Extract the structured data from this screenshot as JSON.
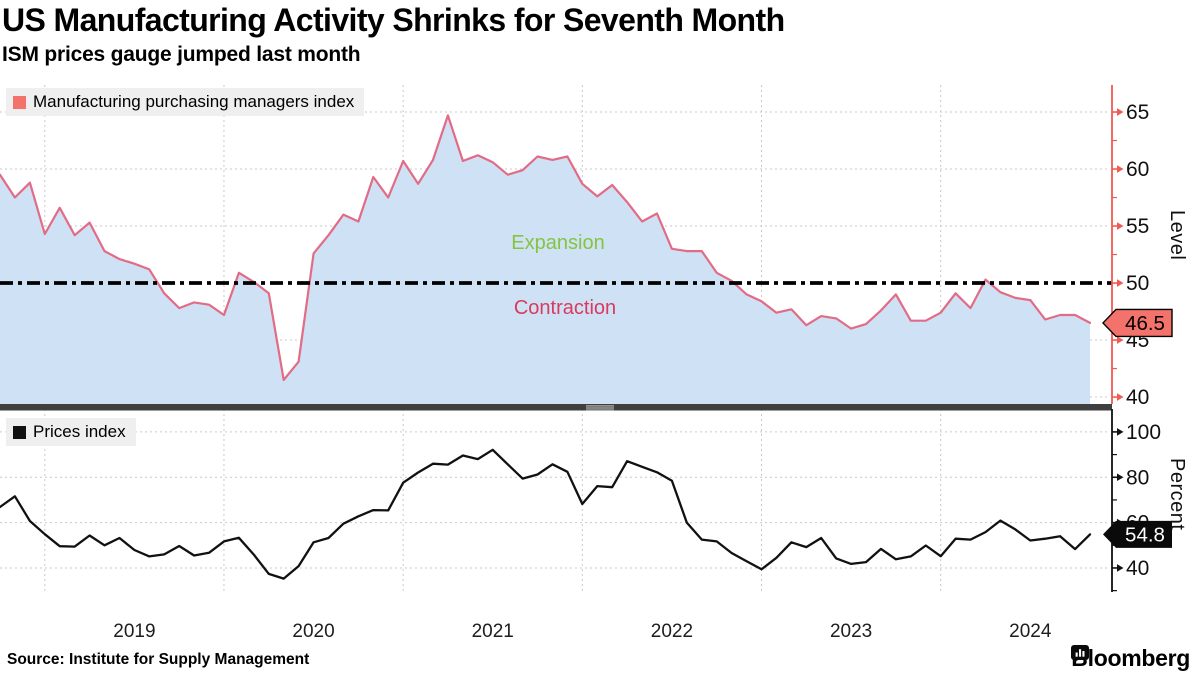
{
  "header": {
    "title": "US Manufacturing Activity Shrinks for Seventh Month",
    "subtitle": "ISM prices gauge jumped last month"
  },
  "footer": {
    "source": "Source: Institute for Supply Management",
    "brand": "Bloomberg"
  },
  "colors": {
    "pmi_line": "#e26b85",
    "pmi_fill": "#cfe2f5",
    "pmi_axis": "#f05a50",
    "pmi_badge_bg": "#f3736c",
    "prices_color": "#111111",
    "expansion_green": "#85c440",
    "contraction_red": "#d93a5e",
    "grid": "#c9c9c9",
    "legend_bg": "#efefef",
    "divider": "#3f3f3f",
    "divider_grip": "#a6a6a6"
  },
  "x_axis": {
    "start_month": "2018-09",
    "frequency": "monthly",
    "year_labels": [
      "2019",
      "2020",
      "2021",
      "2022",
      "2023",
      "2024"
    ]
  },
  "chart_data": [
    {
      "type": "area",
      "name": "manufacturing-pmi",
      "legend": "Manufacturing purchasing managers index",
      "axis_title": "Level",
      "ylim": [
        39.4,
        67.4
      ],
      "yticks_major": [
        40,
        45,
        50,
        55,
        60,
        65
      ],
      "yticks_minor": [
        42.5,
        47.5,
        52.5,
        57.5,
        62.5
      ],
      "reference_line": {
        "value": 50,
        "label_above": "Expansion",
        "label_below": "Contraction"
      },
      "last_value_label": "46.5",
      "values": [
        59.5,
        57.5,
        58.8,
        54.3,
        56.6,
        54.2,
        55.3,
        52.8,
        52.1,
        51.7,
        51.2,
        49.1,
        47.8,
        48.3,
        48.1,
        47.2,
        50.9,
        50.1,
        49.1,
        41.5,
        43.1,
        52.6,
        54.2,
        56.0,
        55.4,
        59.3,
        57.5,
        60.7,
        58.7,
        60.8,
        64.7,
        60.7,
        61.2,
        60.6,
        59.5,
        59.9,
        61.1,
        60.8,
        61.1,
        58.7,
        57.6,
        58.6,
        57.1,
        55.4,
        56.1,
        53.0,
        52.8,
        52.8,
        50.9,
        50.2,
        49.0,
        48.4,
        47.4,
        47.7,
        46.3,
        47.1,
        46.9,
        46.0,
        46.4,
        47.6,
        49.0,
        46.7,
        46.7,
        47.4,
        49.1,
        47.8,
        50.3,
        49.2,
        48.7,
        48.5,
        46.8,
        47.2,
        47.2,
        46.5
      ]
    },
    {
      "type": "line",
      "name": "prices-index",
      "legend": "Prices index",
      "axis_title": "Percent",
      "ylim": [
        29.4,
        110.1
      ],
      "yticks_major": [
        40,
        60,
        80,
        100
      ],
      "yticks_minor": [
        30,
        50,
        70,
        90,
        110
      ],
      "last_value_label": "54.8",
      "values": [
        66.9,
        71.6,
        60.7,
        54.9,
        49.6,
        49.4,
        54.3,
        50.0,
        53.2,
        47.9,
        45.1,
        46.0,
        49.7,
        45.5,
        46.7,
        51.7,
        53.3,
        45.9,
        37.4,
        35.3,
        40.8,
        51.3,
        53.2,
        59.5,
        62.8,
        65.5,
        65.4,
        77.6,
        82.1,
        86.0,
        85.6,
        89.6,
        88.0,
        92.1,
        85.7,
        79.4,
        81.2,
        85.7,
        82.4,
        68.2,
        76.1,
        75.6,
        87.1,
        84.6,
        82.2,
        78.5,
        60.0,
        52.5,
        51.7,
        46.6,
        43.0,
        39.4,
        44.5,
        51.3,
        49.2,
        53.2,
        44.2,
        41.8,
        42.6,
        48.4,
        43.8,
        45.1,
        49.9,
        45.2,
        52.9,
        52.5,
        55.8,
        60.9,
        57.0,
        52.1,
        52.9,
        54.0,
        48.3,
        54.8
      ]
    }
  ]
}
